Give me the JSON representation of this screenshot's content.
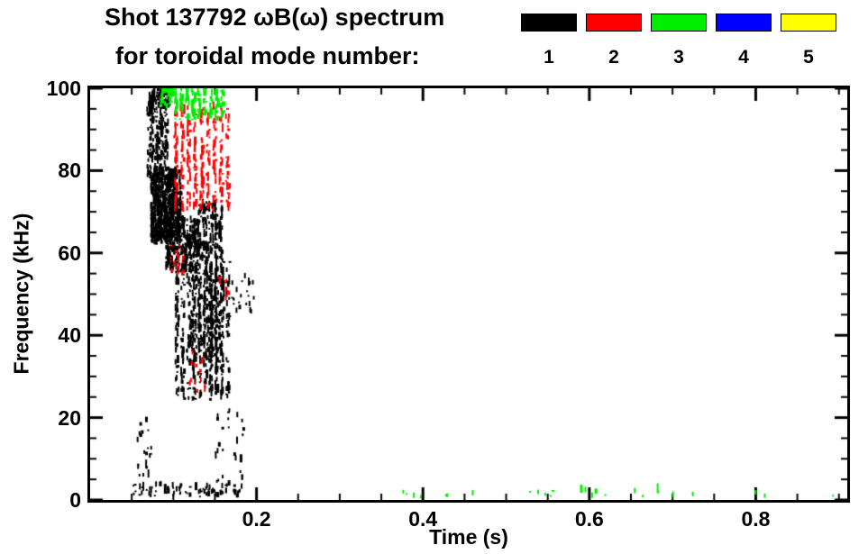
{
  "header": {
    "title_line1": "Shot 137792 ωB(ω) spectrum",
    "title_line2": "for toroidal mode number:"
  },
  "chart_data": {
    "type": "scatter",
    "title": "Shot 137792 ωB(ω) spectrum for toroidal mode number: 1 2 3 4 5",
    "xlabel": "Time (s)",
    "ylabel": "Frequency (kHz)",
    "xlim": [
      0.0,
      0.91
    ],
    "ylim": [
      0,
      100
    ],
    "xticks": [
      {
        "value": 0.2,
        "label": "0.2"
      },
      {
        "value": 0.4,
        "label": "0.4"
      },
      {
        "value": 0.6,
        "label": "0.6"
      },
      {
        "value": 0.8,
        "label": "0.8"
      }
    ],
    "yticks": [
      {
        "value": 0,
        "label": "0"
      },
      {
        "value": 20,
        "label": "20"
      },
      {
        "value": 40,
        "label": "40"
      },
      {
        "value": 60,
        "label": "60"
      },
      {
        "value": 80,
        "label": "80"
      },
      {
        "value": 100,
        "label": "100"
      }
    ],
    "x_minor_step": 0.05,
    "y_minor_step": 5,
    "grid": false,
    "legend_position": "top-right",
    "series": [
      {
        "label": "1",
        "color": "#000000",
        "clusters": [
          {
            "t": [
              0.068,
              0.092
            ],
            "f": [
              78,
              100
            ],
            "n": 220,
            "cols": 8
          },
          {
            "t": [
              0.072,
              0.108
            ],
            "f": [
              62,
              80
            ],
            "n": 650
          },
          {
            "t": [
              0.075,
              0.095
            ],
            "f": [
              95,
              100
            ],
            "n": 40
          },
          {
            "t": [
              0.09,
              0.13
            ],
            "f": [
              55,
              68
            ],
            "n": 300,
            "cols": 9
          },
          {
            "t": [
              0.1,
              0.168
            ],
            "f": [
              24,
              58
            ],
            "n": 420,
            "cols": 10
          },
          {
            "t": [
              0.118,
              0.158
            ],
            "f": [
              33,
              56
            ],
            "n": 260,
            "cols": 8
          },
          {
            "t": [
              0.128,
              0.158
            ],
            "f": [
              58,
              72
            ],
            "n": 160,
            "cols": 6
          },
          {
            "t": [
              0.05,
              0.185
            ],
            "f": [
              0.5,
              3.5
            ],
            "n": 80
          },
          {
            "t": [
              0.055,
              0.075
            ],
            "f": [
              5,
              20
            ],
            "n": 20,
            "cols": 4
          },
          {
            "t": [
              0.148,
              0.185
            ],
            "f": [
              4,
              22
            ],
            "n": 26,
            "cols": 5
          },
          {
            "t": [
              0.168,
              0.196
            ],
            "f": [
              45,
              54
            ],
            "n": 22
          }
        ]
      },
      {
        "label": "2",
        "color": "#ff0000",
        "clusters": [
          {
            "t": [
              0.098,
              0.168
            ],
            "f": [
              70,
              95
            ],
            "n": 300,
            "cols": 9
          },
          {
            "t": [
              0.094,
              0.112
            ],
            "f": [
              54,
              62
            ],
            "n": 18
          },
          {
            "t": [
              0.118,
              0.138
            ],
            "f": [
              26,
              36
            ],
            "n": 14
          },
          {
            "t": [
              0.15,
              0.166
            ],
            "f": [
              46,
              54
            ],
            "n": 8
          }
        ]
      },
      {
        "label": "3",
        "color": "#00ee00",
        "clusters": [
          {
            "t": [
              0.098,
              0.162
            ],
            "f": [
              92,
              100
            ],
            "n": 150,
            "cols": 9
          },
          {
            "t": [
              0.084,
              0.098
            ],
            "f": [
              95,
              100
            ],
            "n": 35
          },
          {
            "t": [
              0.36,
              0.9
            ],
            "f": [
              0.3,
              2.0
            ],
            "n": 26
          }
        ]
      },
      {
        "label": "4",
        "color": "#0000ff",
        "clusters": []
      },
      {
        "label": "5",
        "color": "#ffff00",
        "clusters": []
      }
    ]
  }
}
